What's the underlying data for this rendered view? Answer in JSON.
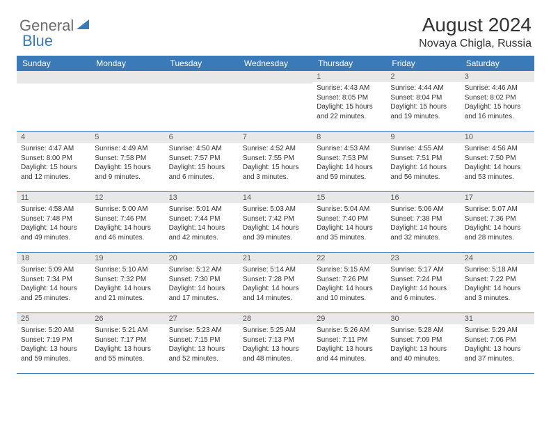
{
  "logo": {
    "part1": "General",
    "part2": "Blue"
  },
  "title": "August 2024",
  "location": "Novaya Chigla, Russia",
  "colors": {
    "header_bg": "#3a7ab8",
    "daynum_bg": "#e8e8e8",
    "text": "#333333",
    "logo_gray": "#6b6b6b",
    "logo_blue": "#3a7ab8"
  },
  "day_headers": [
    "Sunday",
    "Monday",
    "Tuesday",
    "Wednesday",
    "Thursday",
    "Friday",
    "Saturday"
  ],
  "weeks": [
    [
      {
        "n": "",
        "sr": "",
        "ss": "",
        "dl": ""
      },
      {
        "n": "",
        "sr": "",
        "ss": "",
        "dl": ""
      },
      {
        "n": "",
        "sr": "",
        "ss": "",
        "dl": ""
      },
      {
        "n": "",
        "sr": "",
        "ss": "",
        "dl": ""
      },
      {
        "n": "1",
        "sr": "Sunrise: 4:43 AM",
        "ss": "Sunset: 8:05 PM",
        "dl": "Daylight: 15 hours and 22 minutes."
      },
      {
        "n": "2",
        "sr": "Sunrise: 4:44 AM",
        "ss": "Sunset: 8:04 PM",
        "dl": "Daylight: 15 hours and 19 minutes."
      },
      {
        "n": "3",
        "sr": "Sunrise: 4:46 AM",
        "ss": "Sunset: 8:02 PM",
        "dl": "Daylight: 15 hours and 16 minutes."
      }
    ],
    [
      {
        "n": "4",
        "sr": "Sunrise: 4:47 AM",
        "ss": "Sunset: 8:00 PM",
        "dl": "Daylight: 15 hours and 12 minutes."
      },
      {
        "n": "5",
        "sr": "Sunrise: 4:49 AM",
        "ss": "Sunset: 7:58 PM",
        "dl": "Daylight: 15 hours and 9 minutes."
      },
      {
        "n": "6",
        "sr": "Sunrise: 4:50 AM",
        "ss": "Sunset: 7:57 PM",
        "dl": "Daylight: 15 hours and 6 minutes."
      },
      {
        "n": "7",
        "sr": "Sunrise: 4:52 AM",
        "ss": "Sunset: 7:55 PM",
        "dl": "Daylight: 15 hours and 3 minutes."
      },
      {
        "n": "8",
        "sr": "Sunrise: 4:53 AM",
        "ss": "Sunset: 7:53 PM",
        "dl": "Daylight: 14 hours and 59 minutes."
      },
      {
        "n": "9",
        "sr": "Sunrise: 4:55 AM",
        "ss": "Sunset: 7:51 PM",
        "dl": "Daylight: 14 hours and 56 minutes."
      },
      {
        "n": "10",
        "sr": "Sunrise: 4:56 AM",
        "ss": "Sunset: 7:50 PM",
        "dl": "Daylight: 14 hours and 53 minutes."
      }
    ],
    [
      {
        "n": "11",
        "sr": "Sunrise: 4:58 AM",
        "ss": "Sunset: 7:48 PM",
        "dl": "Daylight: 14 hours and 49 minutes."
      },
      {
        "n": "12",
        "sr": "Sunrise: 5:00 AM",
        "ss": "Sunset: 7:46 PM",
        "dl": "Daylight: 14 hours and 46 minutes."
      },
      {
        "n": "13",
        "sr": "Sunrise: 5:01 AM",
        "ss": "Sunset: 7:44 PM",
        "dl": "Daylight: 14 hours and 42 minutes."
      },
      {
        "n": "14",
        "sr": "Sunrise: 5:03 AM",
        "ss": "Sunset: 7:42 PM",
        "dl": "Daylight: 14 hours and 39 minutes."
      },
      {
        "n": "15",
        "sr": "Sunrise: 5:04 AM",
        "ss": "Sunset: 7:40 PM",
        "dl": "Daylight: 14 hours and 35 minutes."
      },
      {
        "n": "16",
        "sr": "Sunrise: 5:06 AM",
        "ss": "Sunset: 7:38 PM",
        "dl": "Daylight: 14 hours and 32 minutes."
      },
      {
        "n": "17",
        "sr": "Sunrise: 5:07 AM",
        "ss": "Sunset: 7:36 PM",
        "dl": "Daylight: 14 hours and 28 minutes."
      }
    ],
    [
      {
        "n": "18",
        "sr": "Sunrise: 5:09 AM",
        "ss": "Sunset: 7:34 PM",
        "dl": "Daylight: 14 hours and 25 minutes."
      },
      {
        "n": "19",
        "sr": "Sunrise: 5:10 AM",
        "ss": "Sunset: 7:32 PM",
        "dl": "Daylight: 14 hours and 21 minutes."
      },
      {
        "n": "20",
        "sr": "Sunrise: 5:12 AM",
        "ss": "Sunset: 7:30 PM",
        "dl": "Daylight: 14 hours and 17 minutes."
      },
      {
        "n": "21",
        "sr": "Sunrise: 5:14 AM",
        "ss": "Sunset: 7:28 PM",
        "dl": "Daylight: 14 hours and 14 minutes."
      },
      {
        "n": "22",
        "sr": "Sunrise: 5:15 AM",
        "ss": "Sunset: 7:26 PM",
        "dl": "Daylight: 14 hours and 10 minutes."
      },
      {
        "n": "23",
        "sr": "Sunrise: 5:17 AM",
        "ss": "Sunset: 7:24 PM",
        "dl": "Daylight: 14 hours and 6 minutes."
      },
      {
        "n": "24",
        "sr": "Sunrise: 5:18 AM",
        "ss": "Sunset: 7:22 PM",
        "dl": "Daylight: 14 hours and 3 minutes."
      }
    ],
    [
      {
        "n": "25",
        "sr": "Sunrise: 5:20 AM",
        "ss": "Sunset: 7:19 PM",
        "dl": "Daylight: 13 hours and 59 minutes."
      },
      {
        "n": "26",
        "sr": "Sunrise: 5:21 AM",
        "ss": "Sunset: 7:17 PM",
        "dl": "Daylight: 13 hours and 55 minutes."
      },
      {
        "n": "27",
        "sr": "Sunrise: 5:23 AM",
        "ss": "Sunset: 7:15 PM",
        "dl": "Daylight: 13 hours and 52 minutes."
      },
      {
        "n": "28",
        "sr": "Sunrise: 5:25 AM",
        "ss": "Sunset: 7:13 PM",
        "dl": "Daylight: 13 hours and 48 minutes."
      },
      {
        "n": "29",
        "sr": "Sunrise: 5:26 AM",
        "ss": "Sunset: 7:11 PM",
        "dl": "Daylight: 13 hours and 44 minutes."
      },
      {
        "n": "30",
        "sr": "Sunrise: 5:28 AM",
        "ss": "Sunset: 7:09 PM",
        "dl": "Daylight: 13 hours and 40 minutes."
      },
      {
        "n": "31",
        "sr": "Sunrise: 5:29 AM",
        "ss": "Sunset: 7:06 PM",
        "dl": "Daylight: 13 hours and 37 minutes."
      }
    ]
  ]
}
